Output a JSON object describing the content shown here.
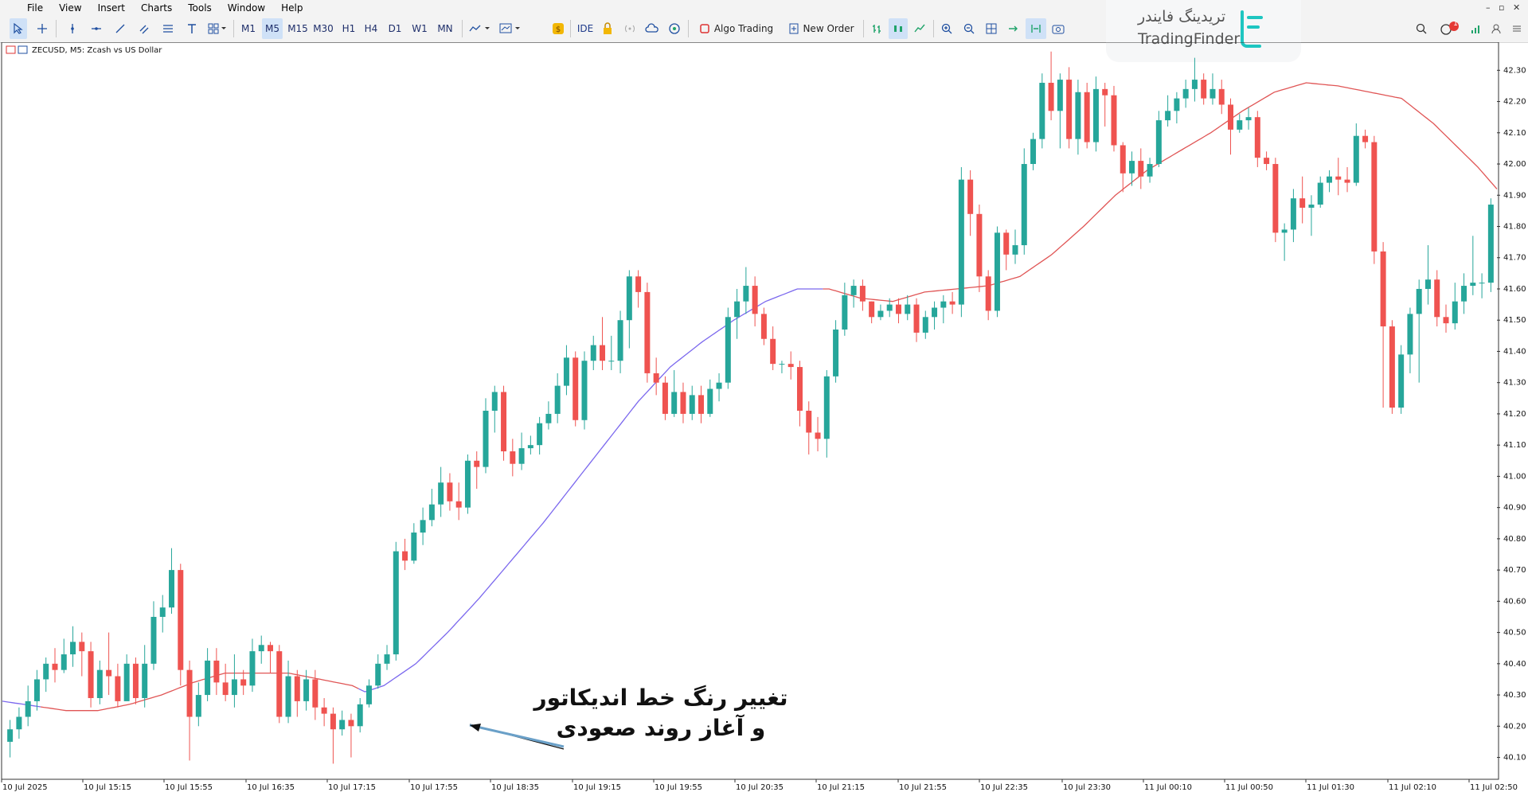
{
  "menu": [
    "File",
    "View",
    "Insert",
    "Charts",
    "Tools",
    "Window",
    "Help"
  ],
  "toolbar": {
    "timeframes": [
      "M1",
      "M5",
      "M15",
      "M30",
      "H1",
      "H4",
      "D1",
      "W1",
      "MN"
    ],
    "active_timeframe": "M5",
    "ide": "IDE",
    "algo_trading": "Algo Trading",
    "new_order": "New Order",
    "notification_count": "1"
  },
  "chart_header": {
    "symbol_line": "ZECUSD, M5:  Zcash vs US Dollar"
  },
  "logo": {
    "persian": "تریدینگ فایندر",
    "english": "TradingFinder"
  },
  "annotation": {
    "line1": "تغییر رنگ خط اندیکاتور",
    "line2": "و آغاز روند صعودی"
  },
  "colors": {
    "bull": "#26a69a",
    "bear": "#ef5350",
    "ma_up": "#7b68ee",
    "ma_down": "#e05555"
  },
  "chart_data": {
    "type": "candlestick",
    "symbol": "ZECUSD",
    "timeframe": "M5",
    "ylim": [
      40.03,
      42.39
    ],
    "y_ticks": [
      "42.30",
      "42.20",
      "42.10",
      "42.00",
      "41.90",
      "41.80",
      "41.70",
      "41.60",
      "41.50",
      "41.40",
      "41.30",
      "41.20",
      "41.10",
      "41.00",
      "40.90",
      "40.80",
      "40.70",
      "40.60",
      "40.50",
      "40.40",
      "40.30",
      "40.20",
      "40.10"
    ],
    "x_ticks": [
      "10 Jul 2025",
      "10 Jul 15:15",
      "10 Jul 15:55",
      "10 Jul 16:35",
      "10 Jul 17:15",
      "10 Jul 17:55",
      "10 Jul 18:35",
      "10 Jul 19:15",
      "10 Jul 19:55",
      "10 Jul 20:35",
      "10 Jul 21:15",
      "10 Jul 21:55",
      "10 Jul 22:35",
      "10 Jul 23:30",
      "11 Jul 00:10",
      "11 Jul 00:50",
      "11 Jul 01:30",
      "11 Jul 02:10",
      "11 Jul 02:50"
    ],
    "candles": [
      [
        40.15,
        40.19,
        40.22,
        40.1
      ],
      [
        40.19,
        40.23,
        40.26,
        40.16
      ],
      [
        40.23,
        40.28,
        40.33,
        40.2
      ],
      [
        40.28,
        40.35,
        40.38,
        40.25
      ],
      [
        40.35,
        40.4,
        40.42,
        40.31
      ],
      [
        40.4,
        40.38,
        40.45,
        40.34
      ],
      [
        40.38,
        40.43,
        40.48,
        40.37
      ],
      [
        40.43,
        40.47,
        40.52,
        40.39
      ],
      [
        40.47,
        40.44,
        40.5,
        40.36
      ],
      [
        40.44,
        40.29,
        40.47,
        40.26
      ],
      [
        40.29,
        40.38,
        40.41,
        40.27
      ],
      [
        40.38,
        40.36,
        40.5,
        40.3
      ],
      [
        40.36,
        40.28,
        40.4,
        40.26
      ],
      [
        40.28,
        40.4,
        40.43,
        40.29
      ],
      [
        40.4,
        40.29,
        40.42,
        40.27
      ],
      [
        40.29,
        40.4,
        40.46,
        40.26
      ],
      [
        40.4,
        40.55,
        40.6,
        40.38
      ],
      [
        40.55,
        40.58,
        40.62,
        40.5
      ],
      [
        40.58,
        40.7,
        40.77,
        40.56
      ],
      [
        40.7,
        40.38,
        40.72,
        40.33
      ],
      [
        40.38,
        40.23,
        40.41,
        40.09
      ],
      [
        40.23,
        40.3,
        40.34,
        40.2
      ],
      [
        40.3,
        40.41,
        40.45,
        40.28
      ],
      [
        40.41,
        40.34,
        40.45,
        40.3
      ],
      [
        40.34,
        40.3,
        40.4,
        40.28
      ],
      [
        40.3,
        40.35,
        40.43,
        40.26
      ],
      [
        40.35,
        40.33,
        40.38,
        40.3
      ],
      [
        40.33,
        40.44,
        40.48,
        40.31
      ],
      [
        40.44,
        40.46,
        40.49,
        40.4
      ],
      [
        40.46,
        40.44,
        40.47,
        40.37
      ],
      [
        40.44,
        40.23,
        40.46,
        40.21
      ],
      [
        40.23,
        40.36,
        40.41,
        40.21
      ],
      [
        40.36,
        40.28,
        40.38,
        40.23
      ],
      [
        40.28,
        40.35,
        40.38,
        40.25
      ],
      [
        40.35,
        40.26,
        40.38,
        40.22
      ],
      [
        40.26,
        40.24,
        40.29,
        40.2
      ],
      [
        40.24,
        40.19,
        40.26,
        40.08
      ],
      [
        40.19,
        40.22,
        40.25,
        40.17
      ],
      [
        40.22,
        40.2,
        40.24,
        40.1
      ],
      [
        40.2,
        40.27,
        40.29,
        40.18
      ],
      [
        40.27,
        40.33,
        40.35,
        40.26
      ],
      [
        40.33,
        40.4,
        40.43,
        40.32
      ],
      [
        40.4,
        40.43,
        40.46,
        40.38
      ],
      [
        40.43,
        40.76,
        40.79,
        40.41
      ],
      [
        40.76,
        40.73,
        40.8,
        40.7
      ],
      [
        40.73,
        40.82,
        40.85,
        40.72
      ],
      [
        40.82,
        40.86,
        40.9,
        40.78
      ],
      [
        40.86,
        40.91,
        40.96,
        40.84
      ],
      [
        40.91,
        40.98,
        41.03,
        40.87
      ],
      [
        40.98,
        40.92,
        41.01,
        40.89
      ],
      [
        40.92,
        40.9,
        40.98,
        40.86
      ],
      [
        40.9,
        41.05,
        41.07,
        40.88
      ],
      [
        41.05,
        41.03,
        41.08,
        40.96
      ],
      [
        41.03,
        41.21,
        41.25,
        41.01
      ],
      [
        41.21,
        41.27,
        41.29,
        41.14
      ],
      [
        41.27,
        41.08,
        41.29,
        41.05
      ],
      [
        41.08,
        41.04,
        41.12,
        41.0
      ],
      [
        41.04,
        41.09,
        41.14,
        41.02
      ],
      [
        41.09,
        41.1,
        41.13,
        41.07
      ],
      [
        41.1,
        41.17,
        41.19,
        41.07
      ],
      [
        41.17,
        41.2,
        41.24,
        41.15
      ],
      [
        41.2,
        41.29,
        41.33,
        41.17
      ],
      [
        41.29,
        41.38,
        41.42,
        41.26
      ],
      [
        41.38,
        41.18,
        41.4,
        41.16
      ],
      [
        41.18,
        41.37,
        41.4,
        41.15
      ],
      [
        41.37,
        41.42,
        41.45,
        41.34
      ],
      [
        41.42,
        41.37,
        41.51,
        41.34
      ],
      [
        41.37,
        41.37,
        41.45,
        41.34
      ],
      [
        41.37,
        41.5,
        41.53,
        41.33
      ],
      [
        41.5,
        41.64,
        41.66,
        41.41
      ],
      [
        41.64,
        41.59,
        41.66,
        41.54
      ],
      [
        41.59,
        41.33,
        41.62,
        41.3
      ],
      [
        41.33,
        41.3,
        41.38,
        41.26
      ],
      [
        41.3,
        41.2,
        41.32,
        41.18
      ],
      [
        41.2,
        41.27,
        41.34,
        41.19
      ],
      [
        41.27,
        41.2,
        41.3,
        41.17
      ],
      [
        41.2,
        41.26,
        41.29,
        41.18
      ],
      [
        41.26,
        41.2,
        41.29,
        41.17
      ],
      [
        41.2,
        41.28,
        41.31,
        41.19
      ],
      [
        41.28,
        41.3,
        41.33,
        41.24
      ],
      [
        41.3,
        41.51,
        41.54,
        41.28
      ],
      [
        41.51,
        41.56,
        41.6,
        41.44
      ],
      [
        41.56,
        41.61,
        41.67,
        41.52
      ],
      [
        41.61,
        41.52,
        41.64,
        41.48
      ],
      [
        41.52,
        41.44,
        41.54,
        41.42
      ],
      [
        41.44,
        41.36,
        41.48,
        41.34
      ],
      [
        41.36,
        41.36,
        41.37,
        41.33
      ],
      [
        41.36,
        41.35,
        41.4,
        41.31
      ],
      [
        41.35,
        41.21,
        41.37,
        41.16
      ],
      [
        41.21,
        41.14,
        41.24,
        41.07
      ],
      [
        41.14,
        41.12,
        41.19,
        41.08
      ],
      [
        41.12,
        41.32,
        41.34,
        41.06
      ],
      [
        41.32,
        41.47,
        41.5,
        41.3
      ],
      [
        41.47,
        41.58,
        41.62,
        41.45
      ],
      [
        41.58,
        41.61,
        41.63,
        41.54
      ],
      [
        41.61,
        41.56,
        41.63,
        41.53
      ],
      [
        41.56,
        41.51,
        41.56,
        41.49
      ],
      [
        41.51,
        41.53,
        41.55,
        41.5
      ],
      [
        41.53,
        41.55,
        41.57,
        41.51
      ],
      [
        41.55,
        41.52,
        41.57,
        41.49
      ],
      [
        41.52,
        41.55,
        41.58,
        41.5
      ],
      [
        41.55,
        41.46,
        41.57,
        41.43
      ],
      [
        41.46,
        41.51,
        41.53,
        41.44
      ],
      [
        41.51,
        41.54,
        41.56,
        41.47
      ],
      [
        41.54,
        41.56,
        41.58,
        41.49
      ],
      [
        41.56,
        41.55,
        41.59,
        41.52
      ],
      [
        41.55,
        41.95,
        41.99,
        41.51
      ],
      [
        41.95,
        41.84,
        41.98,
        41.77
      ],
      [
        41.84,
        41.64,
        41.87,
        41.59
      ],
      [
        41.64,
        41.53,
        41.66,
        41.5
      ],
      [
        41.53,
        41.78,
        41.8,
        41.51
      ],
      [
        41.78,
        41.71,
        41.79,
        41.66
      ],
      [
        41.71,
        41.74,
        41.79,
        41.68
      ],
      [
        41.74,
        42.0,
        42.05,
        41.71
      ],
      [
        42.0,
        42.08,
        42.1,
        41.98
      ],
      [
        42.08,
        42.26,
        42.29,
        42.05
      ],
      [
        42.26,
        42.17,
        42.36,
        42.14
      ],
      [
        42.17,
        42.27,
        42.29,
        42.05
      ],
      [
        42.27,
        42.08,
        42.31,
        42.05
      ],
      [
        42.08,
        42.23,
        42.27,
        42.03
      ],
      [
        42.23,
        42.07,
        42.26,
        42.05
      ],
      [
        42.07,
        42.24,
        42.28,
        42.04
      ],
      [
        42.24,
        42.22,
        42.26,
        42.12
      ],
      [
        42.22,
        42.06,
        42.25,
        42.04
      ],
      [
        42.06,
        41.97,
        42.07,
        41.91
      ],
      [
        41.97,
        42.01,
        42.04,
        41.93
      ],
      [
        42.01,
        41.96,
        42.05,
        41.92
      ],
      [
        41.96,
        42.0,
        42.02,
        41.94
      ],
      [
        42.0,
        42.14,
        42.17,
        41.99
      ],
      [
        42.14,
        42.17,
        42.22,
        42.12
      ],
      [
        42.17,
        42.21,
        42.23,
        42.13
      ],
      [
        42.21,
        42.24,
        42.27,
        42.18
      ],
      [
        42.24,
        42.27,
        42.34,
        42.2
      ],
      [
        42.27,
        42.21,
        42.29,
        42.19
      ],
      [
        42.21,
        42.24,
        42.29,
        42.19
      ],
      [
        42.24,
        42.19,
        42.27,
        42.16
      ],
      [
        42.19,
        42.11,
        42.21,
        42.03
      ],
      [
        42.11,
        42.14,
        42.16,
        42.1
      ],
      [
        42.14,
        42.15,
        42.18,
        42.11
      ],
      [
        42.15,
        42.02,
        42.17,
        41.99
      ],
      [
        42.02,
        42.0,
        42.04,
        41.98
      ],
      [
        42.0,
        41.78,
        42.02,
        41.75
      ],
      [
        41.78,
        41.79,
        41.81,
        41.69
      ],
      [
        41.79,
        41.89,
        41.92,
        41.75
      ],
      [
        41.89,
        41.86,
        41.96,
        41.81
      ],
      [
        41.86,
        41.87,
        41.9,
        41.77
      ],
      [
        41.87,
        41.94,
        41.96,
        41.86
      ],
      [
        41.94,
        41.96,
        41.98,
        41.91
      ],
      [
        41.96,
        41.95,
        42.02,
        41.9
      ],
      [
        41.95,
        41.94,
        41.99,
        41.91
      ],
      [
        41.94,
        42.09,
        42.13,
        41.93
      ],
      [
        42.09,
        42.07,
        42.11,
        42.05
      ],
      [
        42.07,
        41.72,
        42.09,
        41.68
      ],
      [
        41.72,
        41.48,
        41.75,
        41.22
      ],
      [
        41.48,
        41.22,
        41.5,
        41.2
      ],
      [
        41.22,
        41.39,
        41.42,
        41.2
      ],
      [
        41.39,
        41.52,
        41.54,
        41.33
      ],
      [
        41.52,
        41.6,
        41.63,
        41.3
      ],
      [
        41.6,
        41.63,
        41.74,
        41.55
      ],
      [
        41.63,
        41.51,
        41.66,
        41.48
      ],
      [
        41.51,
        41.49,
        41.55,
        41.46
      ],
      [
        41.49,
        41.56,
        41.62,
        41.47
      ],
      [
        41.56,
        41.61,
        41.65,
        41.52
      ],
      [
        41.61,
        41.62,
        41.77,
        41.58
      ],
      [
        41.62,
        41.62,
        41.65,
        41.57
      ],
      [
        41.62,
        41.87,
        41.89,
        41.59
      ]
    ],
    "moving_average": {
      "points": [
        [
          0,
          40.28
        ],
        [
          10,
          40.25
        ],
        [
          15,
          40.25
        ],
        [
          20,
          40.27
        ],
        [
          25,
          40.3
        ],
        [
          30,
          40.34
        ],
        [
          35,
          40.37
        ],
        [
          40,
          40.37
        ],
        [
          45,
          40.37
        ],
        [
          50,
          40.35
        ],
        [
          55,
          40.33
        ],
        [
          57,
          40.31
        ],
        [
          60,
          40.33
        ],
        [
          65,
          40.4
        ],
        [
          70,
          40.5
        ],
        [
          75,
          40.61
        ],
        [
          80,
          40.73
        ],
        [
          85,
          40.85
        ],
        [
          90,
          40.98
        ],
        [
          95,
          41.11
        ],
        [
          100,
          41.24
        ],
        [
          105,
          41.35
        ],
        [
          110,
          41.43
        ],
        [
          115,
          41.5
        ],
        [
          120,
          41.56
        ],
        [
          125,
          41.6
        ],
        [
          130,
          41.6
        ],
        [
          135,
          41.57
        ],
        [
          140,
          41.56
        ],
        [
          145,
          41.59
        ],
        [
          150,
          41.6
        ],
        [
          155,
          41.61
        ],
        [
          160,
          41.64
        ],
        [
          165,
          41.71
        ],
        [
          170,
          41.8
        ],
        [
          175,
          41.9
        ],
        [
          180,
          41.98
        ],
        [
          185,
          42.04
        ],
        [
          190,
          42.1
        ],
        [
          195,
          42.17
        ],
        [
          200,
          42.23
        ],
        [
          205,
          42.26
        ],
        [
          210,
          42.25
        ],
        [
          215,
          42.23
        ],
        [
          220,
          42.21
        ],
        [
          225,
          42.13
        ],
        [
          232,
          41.99
        ],
        [
          235,
          41.92
        ]
      ],
      "up_ranges": [
        [
          0,
          6
        ],
        [
          56,
          129
        ]
      ],
      "down_ranges": [
        [
          6,
          56
        ],
        [
          129,
          235
        ]
      ]
    }
  }
}
